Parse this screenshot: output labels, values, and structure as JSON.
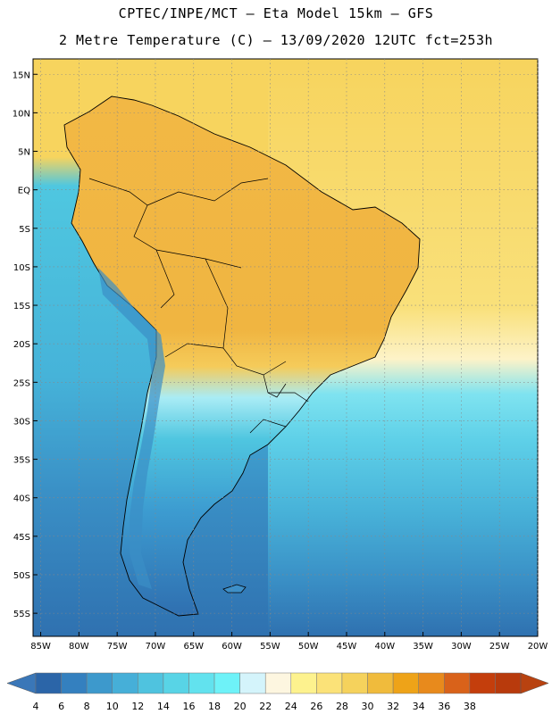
{
  "header": {
    "title_line1": "CPTEC/INPE/MCT –  Eta Model 15km – GFS",
    "title_line2": "2 Metre Temperature (C) – 13/09/2020 12UTC fct=253h"
  },
  "axes": {
    "lat_labels": [
      "15N",
      "10N",
      "5N",
      "EQ",
      "5S",
      "10S",
      "15S",
      "20S",
      "25S",
      "30S",
      "35S",
      "40S",
      "45S",
      "50S",
      "55S"
    ],
    "lon_labels": [
      "85W",
      "80W",
      "75W",
      "70W",
      "65W",
      "60W",
      "55W",
      "50W",
      "45W",
      "40W",
      "35W",
      "30W",
      "25W",
      "20W"
    ],
    "lat_range": [
      17,
      -58
    ],
    "lon_range": [
      -86,
      -20
    ]
  },
  "colorbar": {
    "labels": [
      "4",
      "6",
      "8",
      "10",
      "12",
      "14",
      "16",
      "18",
      "20",
      "22",
      "24",
      "26",
      "28",
      "30",
      "32",
      "34",
      "36",
      "38"
    ],
    "colors": [
      "#2b65a8",
      "#3480bf",
      "#3d99cc",
      "#46afd8",
      "#4fc3df",
      "#58d4e6",
      "#62e2ee",
      "#6ef2f8",
      "#d4f4fb",
      "#fdf6e0",
      "#fdf28e",
      "#fbe278",
      "#f5d25c",
      "#f0bb3c",
      "#eea318",
      "#e88a1c",
      "#d9621a",
      "#c43e0c",
      "#b83a0c"
    ],
    "left_arrow_color": "#3a77b8",
    "right_arrow_color": "#b84210"
  }
}
